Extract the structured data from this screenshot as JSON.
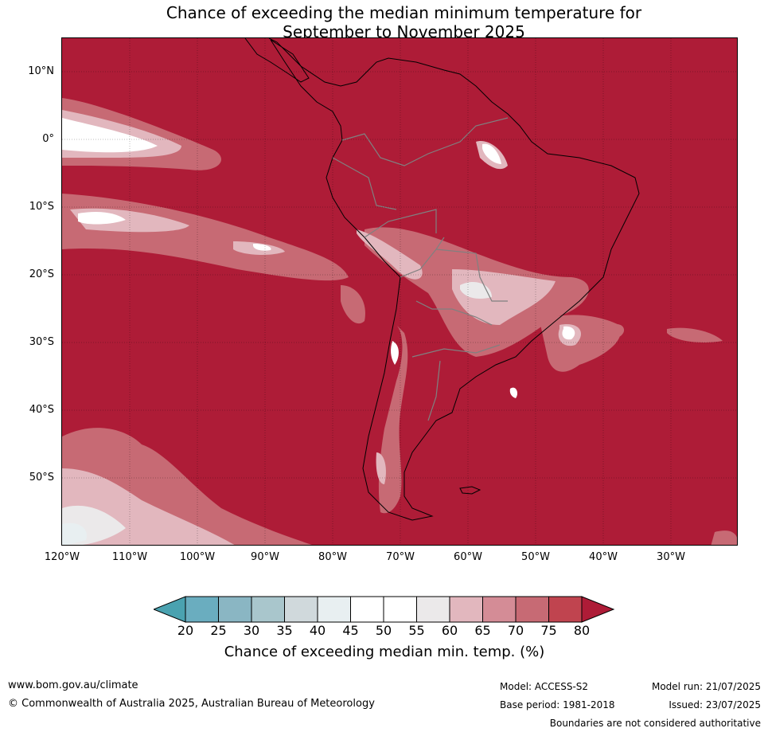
{
  "title": {
    "line1": "Chance of exceeding the median minimum temperature for",
    "line2": "September to November 2025"
  },
  "map": {
    "background_color": "#ae1c37",
    "latitude_labels": [
      "10°N",
      "0°",
      "10°S",
      "20°S",
      "30°S",
      "40°S",
      "50°S"
    ],
    "longitude_labels": [
      "120°W",
      "110°W",
      "100°W",
      "90°W",
      "80°W",
      "70°W",
      "60°W",
      "50°W",
      "40°W",
      "30°W"
    ],
    "extent": {
      "lon_min": -120,
      "lon_max": -20,
      "lat_min": -60,
      "lat_max": 15
    }
  },
  "colorbar": {
    "ticks": [
      "20",
      "25",
      "30",
      "35",
      "40",
      "45",
      "50",
      "55",
      "60",
      "65",
      "70",
      "75",
      "80"
    ],
    "colors": {
      "below_20": "#4aa2b0",
      "20-25": "#6aadbf",
      "25-30": "#8ab6c3",
      "30-35": "#a9c6cc",
      "35-40": "#d0d9dc",
      "40-45": "#e8eff1",
      "45-50": "#ffffff",
      "50-55": "#ffffff",
      "55-60": "#ebe9ea",
      "60-65": "#e2b7be",
      "65-70": "#d48c96",
      "70-75": "#c76a74",
      "75-80": "#c0444f",
      "above_80": "#ae1c37"
    },
    "label": "Chance of exceeding median min. temp. (%)"
  },
  "footer": {
    "website": "www.bom.gov.au/climate",
    "copyright": "© Commonwealth of Australia 2025, Australian Bureau of Meteorology",
    "model": "Model: ACCESS-S2",
    "base_period": "Base period: 1981-2018",
    "model_run": "Model run: 21/07/2025",
    "issued": "Issued: 23/07/2025",
    "disclaimer": "Boundaries are not considered authoritative"
  }
}
